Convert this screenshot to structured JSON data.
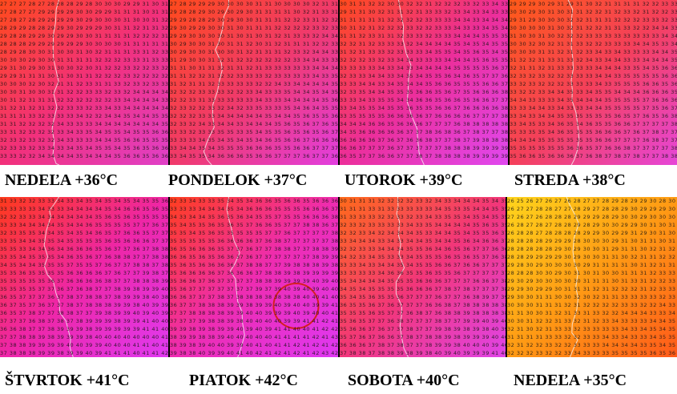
{
  "panels": [
    {
      "day": "NEDEĽA",
      "temp": "+36°C",
      "colors": [
        "#ff4a1c",
        "#f2307a",
        "#e040c8"
      ]
    },
    {
      "day": "PONDELOK",
      "temp": "+37°C",
      "colors": [
        "#ff4a1c",
        "#f03a6a",
        "#e23ee0"
      ]
    },
    {
      "day": "UTOROK",
      "temp": "+39°C",
      "colors": [
        "#ff4a1c",
        "#ec2e9a",
        "#e048f0"
      ]
    },
    {
      "day": "STREDA",
      "temp": "+38°C",
      "colors": [
        "#ff5a18",
        "#f4405a",
        "#e646d8"
      ]
    },
    {
      "day": "ŠTVRTOK",
      "temp": "+41°C",
      "colors": [
        "#ff3a1a",
        "#ee26a6",
        "#e03af2"
      ]
    },
    {
      "day": "PIATOK",
      "temp": "+42°C",
      "colors": [
        "#ff3e1e",
        "#ee2cb0",
        "#df38f4"
      ]
    },
    {
      "day": "SOBOTA",
      "temp": "+40°C",
      "colors": [
        "#ff6a1a",
        "#f2367a",
        "#e044e8"
      ]
    },
    {
      "day": "NEDEĽA",
      "temp": "+35°C",
      "colors": [
        "#ffd41c",
        "#ff9a14",
        "#ff5a1a"
      ]
    }
  ],
  "highlight_panel": 5
}
